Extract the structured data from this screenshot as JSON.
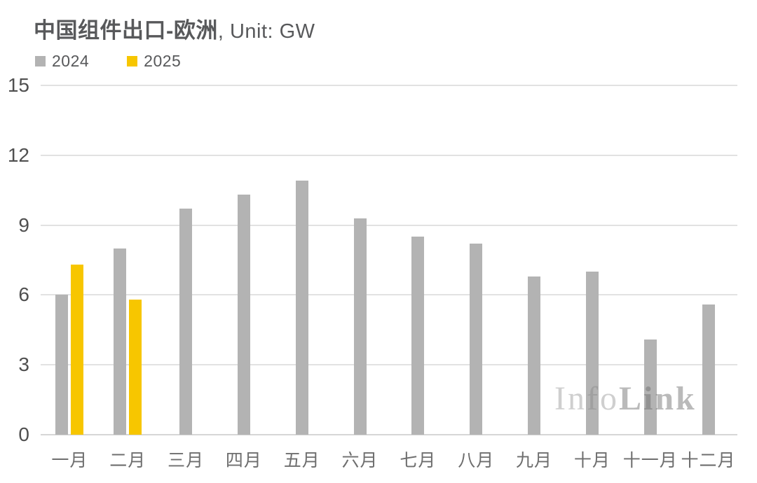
{
  "title": {
    "main": "中国组件出口-欧洲",
    "suffix": ", Unit: GW"
  },
  "legend": [
    {
      "label": "2024",
      "color": "#b3b3b3"
    },
    {
      "label": "2025",
      "color": "#f7c600"
    }
  ],
  "watermark": {
    "part1": "Info",
    "part2": "Link"
  },
  "chart_data": {
    "type": "bar",
    "title": "中国组件出口-欧洲, Unit: GW",
    "unit": "GW",
    "categories": [
      "一月",
      "二月",
      "三月",
      "四月",
      "五月",
      "六月",
      "七月",
      "八月",
      "九月",
      "十月",
      "十一月",
      "十二月"
    ],
    "series": [
      {
        "name": "2024",
        "color": "#b3b3b3",
        "values": [
          6.0,
          8.0,
          9.7,
          10.3,
          10.9,
          9.3,
          8.5,
          8.2,
          6.8,
          7.0,
          4.1,
          5.6
        ]
      },
      {
        "name": "2025",
        "color": "#f7c600",
        "values": [
          7.3,
          5.8,
          null,
          null,
          null,
          null,
          null,
          null,
          null,
          null,
          null,
          null
        ]
      }
    ],
    "ylim": [
      0,
      15
    ],
    "yticks": [
      0,
      3,
      6,
      9,
      12,
      15
    ],
    "grid": true,
    "legend_position": "top-left",
    "xlabel": "",
    "ylabel": ""
  }
}
